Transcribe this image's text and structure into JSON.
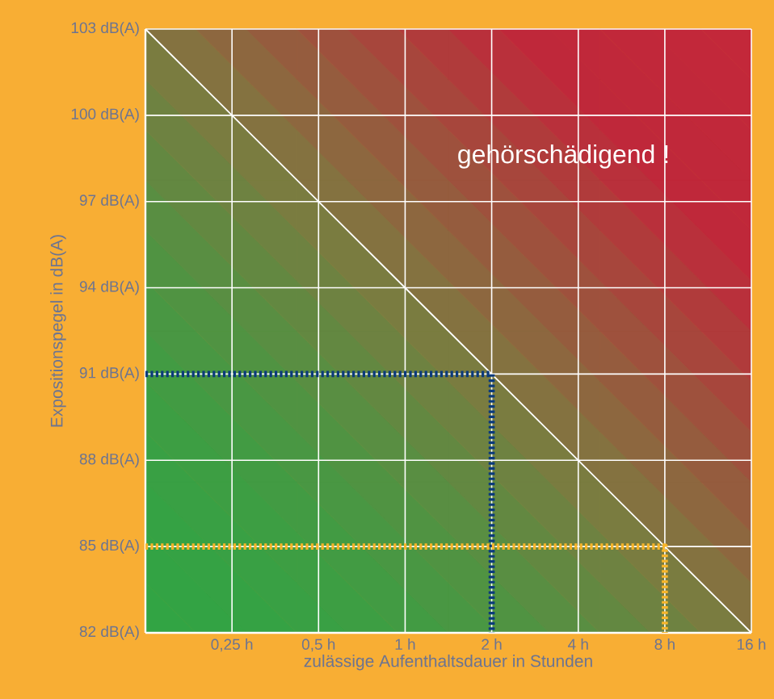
{
  "chart_data": {
    "type": "line",
    "xlabel": "zulässige Aufenthaltsdauer in Stunden",
    "ylabel": "Expositionspegel in dB(A)",
    "annotations": [
      "gehörschädigend !"
    ],
    "log": "x",
    "grid": true,
    "marker": "none",
    "xlim": [
      0.125,
      16
    ],
    "ylim": [
      82,
      103
    ],
    "xticks": [
      {
        "value": 0.25,
        "label": "0,25 h"
      },
      {
        "value": 0.5,
        "label": "0,5 h"
      },
      {
        "value": 1,
        "label": "1 h"
      },
      {
        "value": 2,
        "label": "2 h"
      },
      {
        "value": 4,
        "label": "4 h"
      },
      {
        "value": 8,
        "label": "8 h"
      },
      {
        "value": 16,
        "label": "16 h"
      }
    ],
    "yticks": [
      {
        "value": 82,
        "label": "82 dB(A)"
      },
      {
        "value": 85,
        "label": "85 dB(A)"
      },
      {
        "value": 88,
        "label": "88 dB(A)"
      },
      {
        "value": 91,
        "label": "91 dB(A)"
      },
      {
        "value": 94,
        "label": "94 dB(A)"
      },
      {
        "value": 97,
        "label": "97 dB(A)"
      },
      {
        "value": 100,
        "label": "100 dB(A)"
      },
      {
        "value": 103,
        "label": "103 dB(A)"
      }
    ],
    "series": [
      {
        "color": "#ffffff",
        "line_style": "solid",
        "x": [
          0.125,
          16
        ],
        "values": [
          103,
          82
        ]
      },
      {
        "color": "#0b3a7c",
        "line_style": "dotted",
        "x": [
          0.125,
          2,
          2
        ],
        "values": [
          91,
          91,
          82
        ]
      },
      {
        "color": "#f7b52a",
        "line_style": "dotted",
        "x": [
          0.125,
          8,
          8
        ],
        "values": [
          85,
          85,
          82
        ]
      }
    ]
  }
}
